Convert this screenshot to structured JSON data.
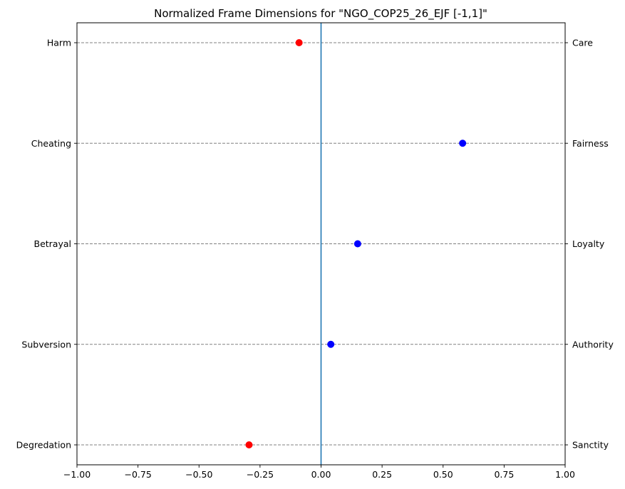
{
  "chart_data": {
    "type": "scatter",
    "title": "Normalized Frame Dimensions for \"NGO_COP25_26_EJF [-1,1]\"",
    "xlim": [
      -1.0,
      1.0
    ],
    "x_ticks": [
      -1.0,
      -0.75,
      -0.5,
      -0.25,
      0.0,
      0.25,
      0.5,
      0.75,
      1.0
    ],
    "x_tick_labels": [
      "−1.00",
      "−0.75",
      "−0.50",
      "−0.25",
      "0.00",
      "0.25",
      "0.50",
      "0.75",
      "1.00"
    ],
    "grid": "horizontal dashed",
    "reference_line_x": 0.0,
    "colors": {
      "positive": "#0000ff",
      "negative": "#ff0000",
      "zero_line": "#1f77b4",
      "grid": "#808080"
    },
    "rows": [
      {
        "left_label": "Harm",
        "right_label": "Care",
        "value": -0.09
      },
      {
        "left_label": "Cheating",
        "right_label": "Fairness",
        "value": 0.58
      },
      {
        "left_label": "Betrayal",
        "right_label": "Loyalty",
        "value": 0.15
      },
      {
        "left_label": "Subversion",
        "right_label": "Authority",
        "value": 0.04
      },
      {
        "left_label": "Degredation",
        "right_label": "Sanctity",
        "value": -0.295
      }
    ]
  }
}
